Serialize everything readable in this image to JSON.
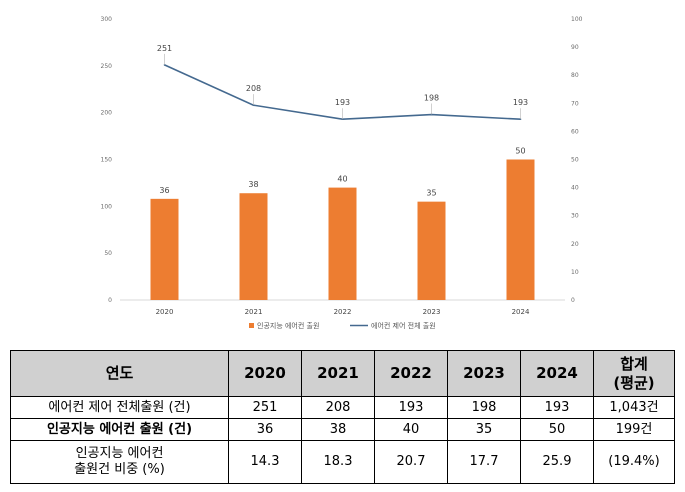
{
  "chart_data": {
    "type": "bar+line",
    "categories": [
      "2020",
      "2021",
      "2022",
      "2023",
      "2024"
    ],
    "series": [
      {
        "name": "인공지능 에어컨 출원",
        "type": "bar",
        "axis": "right",
        "values": [
          36,
          38,
          40,
          35,
          50
        ],
        "color": "#ed7d31"
      },
      {
        "name": "에어컨 제어 전체 출원",
        "type": "line",
        "axis": "left",
        "values": [
          251,
          208,
          193,
          198,
          193
        ],
        "color": "#44698f"
      }
    ],
    "y_left": {
      "ylim": [
        0,
        300
      ],
      "ticks": [
        "0",
        "50",
        "100",
        "150",
        "200",
        "250",
        "300"
      ]
    },
    "y_right": {
      "ylim": [
        0,
        100
      ],
      "ticks": [
        "0",
        "10",
        "20",
        "30",
        "40",
        "50",
        "60",
        "70",
        "80",
        "90",
        "100"
      ]
    },
    "grid": false,
    "legend_placement": "bottom"
  },
  "table": {
    "header": {
      "label": "연도",
      "years": [
        "2020",
        "2021",
        "2022",
        "2023",
        "2024"
      ],
      "total_line1": "합계",
      "total_line2": "(평균)"
    },
    "rows": [
      {
        "label": "에어컨 제어 전체출원 (건)",
        "values": [
          "251",
          "208",
          "193",
          "198",
          "193"
        ],
        "total": "1,043건"
      },
      {
        "label": "인공지능 에어컨 출원 (건)",
        "values": [
          "36",
          "38",
          "40",
          "35",
          "50"
        ],
        "total": "199건"
      },
      {
        "label_line1": "인공지능 에어컨",
        "label_line2": "출원건 비중 (%)",
        "values": [
          "14.3",
          "18.3",
          "20.7",
          "17.7",
          "25.9"
        ],
        "total": "(19.4%)"
      }
    ]
  }
}
